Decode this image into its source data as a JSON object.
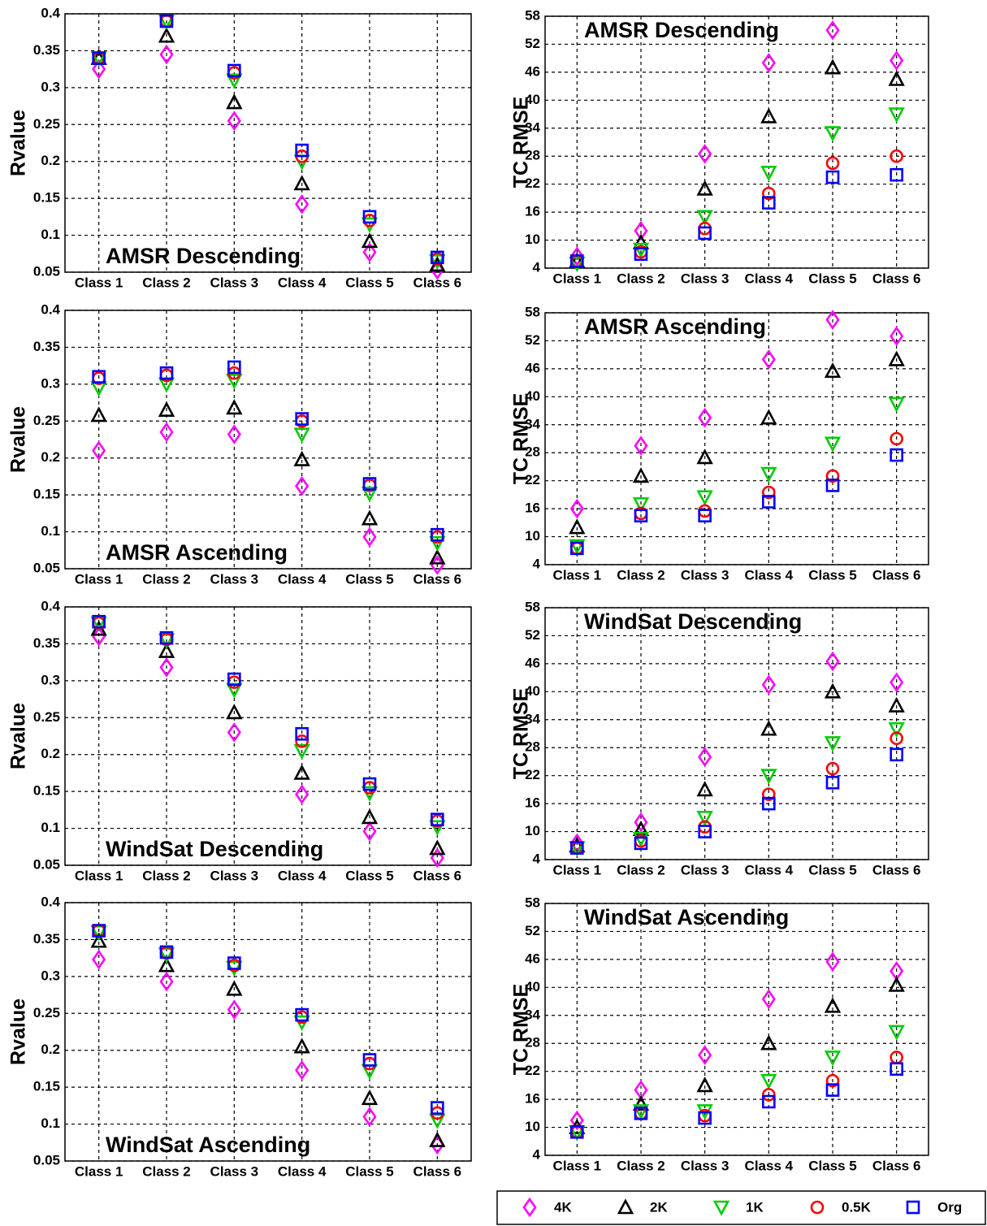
{
  "chart_data": [
    {
      "type": "scatter",
      "title": "AMSR Descending",
      "ylabel": "Rvalue",
      "grid": true,
      "categories": [
        "Class 1",
        "Class 2",
        "Class 3",
        "Class 4",
        "Class 5",
        "Class 6"
      ],
      "ylim": [
        0.05,
        0.4
      ],
      "yticks": [
        0.05,
        0.1,
        0.15,
        0.2,
        0.25,
        0.3,
        0.35,
        0.4
      ],
      "series": [
        {
          "name": "4K",
          "color": "#ff00ff",
          "marker": "diamond",
          "values": [
            0.325,
            0.345,
            0.255,
            0.142,
            0.077,
            0.053
          ]
        },
        {
          "name": "2K",
          "color": "#000000",
          "marker": "triangle-up",
          "values": [
            0.34,
            0.37,
            0.28,
            0.17,
            0.092,
            0.06
          ]
        },
        {
          "name": "1K",
          "color": "#00cc00",
          "marker": "triangle-down",
          "values": [
            0.34,
            0.39,
            0.31,
            0.2,
            0.115,
            0.065
          ]
        },
        {
          "name": "0.5K",
          "color": "#ff0000",
          "marker": "circle",
          "values": [
            0.34,
            0.39,
            0.32,
            0.207,
            0.12,
            0.068
          ]
        },
        {
          "name": "Org",
          "color": "#0000ff",
          "marker": "square",
          "values": [
            0.34,
            0.39,
            0.323,
            0.215,
            0.125,
            0.07
          ]
        }
      ]
    },
    {
      "type": "scatter",
      "title": "AMSR Descending",
      "ylabel": "TC RMSE",
      "grid": true,
      "categories": [
        "Class 1",
        "Class 2",
        "Class 3",
        "Class 4",
        "Class 5",
        "Class 6"
      ],
      "ylim": [
        4,
        58
      ],
      "yticks": [
        4,
        10,
        16,
        22,
        28,
        34,
        40,
        46,
        52,
        58
      ],
      "series": [
        {
          "name": "4K",
          "color": "#ff00ff",
          "marker": "diamond",
          "values": [
            6.5,
            12,
            28.5,
            48,
            55,
            48.5
          ]
        },
        {
          "name": "2K",
          "color": "#000000",
          "marker": "triangle-up",
          "values": [
            5.5,
            9.5,
            21,
            36.5,
            47,
            44.5
          ]
        },
        {
          "name": "1K",
          "color": "#00cc00",
          "marker": "triangle-down",
          "values": [
            5,
            8,
            15,
            24.5,
            33,
            37
          ]
        },
        {
          "name": "0.5K",
          "color": "#ff0000",
          "marker": "circle",
          "values": [
            5.5,
            7.5,
            12.5,
            20,
            26.5,
            28
          ]
        },
        {
          "name": "Org",
          "color": "#0000ff",
          "marker": "square",
          "values": [
            5.5,
            7,
            11.5,
            18,
            23.5,
            24
          ]
        }
      ]
    },
    {
      "type": "scatter",
      "title": "AMSR Ascending",
      "ylabel": "Rvalue",
      "grid": true,
      "categories": [
        "Class 1",
        "Class 2",
        "Class 3",
        "Class 4",
        "Class 5",
        "Class 6"
      ],
      "ylim": [
        0.05,
        0.4
      ],
      "yticks": [
        0.05,
        0.1,
        0.15,
        0.2,
        0.25,
        0.3,
        0.35,
        0.4
      ],
      "series": [
        {
          "name": "4K",
          "color": "#ff00ff",
          "marker": "diamond",
          "values": [
            0.21,
            0.235,
            0.232,
            0.162,
            0.093,
            0.055
          ]
        },
        {
          "name": "2K",
          "color": "#000000",
          "marker": "triangle-up",
          "values": [
            0.258,
            0.265,
            0.268,
            0.198,
            0.118,
            0.065
          ]
        },
        {
          "name": "1K",
          "color": "#00cc00",
          "marker": "triangle-down",
          "values": [
            0.295,
            0.3,
            0.305,
            0.232,
            0.152,
            0.085
          ]
        },
        {
          "name": "0.5K",
          "color": "#ff0000",
          "marker": "circle",
          "values": [
            0.308,
            0.312,
            0.315,
            0.25,
            0.163,
            0.093
          ]
        },
        {
          "name": "Org",
          "color": "#0000ff",
          "marker": "square",
          "values": [
            0.31,
            0.315,
            0.323,
            0.253,
            0.165,
            0.096
          ]
        }
      ]
    },
    {
      "type": "scatter",
      "title": "AMSR Ascending",
      "ylabel": "TC RMSE",
      "grid": true,
      "categories": [
        "Class 1",
        "Class 2",
        "Class 3",
        "Class 4",
        "Class 5",
        "Class 6"
      ],
      "ylim": [
        4,
        58
      ],
      "yticks": [
        4,
        10,
        16,
        22,
        28,
        34,
        40,
        46,
        52,
        58
      ],
      "series": [
        {
          "name": "4K",
          "color": "#ff00ff",
          "marker": "diamond",
          "values": [
            16,
            29.5,
            35.5,
            48,
            56.5,
            53
          ]
        },
        {
          "name": "2K",
          "color": "#000000",
          "marker": "triangle-up",
          "values": [
            12,
            23,
            27,
            35.5,
            45.5,
            48
          ]
        },
        {
          "name": "1K",
          "color": "#00cc00",
          "marker": "triangle-down",
          "values": [
            8,
            17,
            18.5,
            23.5,
            30,
            38.5
          ]
        },
        {
          "name": "0.5K",
          "color": "#ff0000",
          "marker": "circle",
          "values": [
            7.5,
            15,
            15.5,
            19.5,
            23,
            31
          ]
        },
        {
          "name": "Org",
          "color": "#0000ff",
          "marker": "square",
          "values": [
            7.5,
            14.5,
            14.5,
            17.5,
            21,
            27.5
          ]
        }
      ]
    },
    {
      "type": "scatter",
      "title": "WindSat Descending",
      "ylabel": "Rvalue",
      "grid": true,
      "categories": [
        "Class 1",
        "Class 2",
        "Class 3",
        "Class 4",
        "Class 5",
        "Class 6"
      ],
      "ylim": [
        0.05,
        0.4
      ],
      "yticks": [
        0.05,
        0.1,
        0.15,
        0.2,
        0.25,
        0.3,
        0.35,
        0.4
      ],
      "series": [
        {
          "name": "4K",
          "color": "#ff00ff",
          "marker": "diamond",
          "values": [
            0.36,
            0.318,
            0.23,
            0.146,
            0.096,
            0.06
          ]
        },
        {
          "name": "2K",
          "color": "#000000",
          "marker": "triangle-up",
          "values": [
            0.37,
            0.34,
            0.257,
            0.175,
            0.115,
            0.073
          ]
        },
        {
          "name": "1K",
          "color": "#00cc00",
          "marker": "triangle-down",
          "values": [
            0.378,
            0.355,
            0.288,
            0.205,
            0.148,
            0.102
          ]
        },
        {
          "name": "0.5K",
          "color": "#ff0000",
          "marker": "circle",
          "values": [
            0.378,
            0.356,
            0.298,
            0.218,
            0.155,
            0.11
          ]
        },
        {
          "name": "Org",
          "color": "#0000ff",
          "marker": "square",
          "values": [
            0.38,
            0.358,
            0.302,
            0.228,
            0.16,
            0.112
          ]
        }
      ]
    },
    {
      "type": "scatter",
      "title": "WindSat Descending",
      "ylabel": "TC RMSE",
      "grid": true,
      "categories": [
        "Class 1",
        "Class 2",
        "Class 3",
        "Class 4",
        "Class 5",
        "Class 6"
      ],
      "ylim": [
        4,
        58
      ],
      "yticks": [
        4,
        10,
        16,
        22,
        28,
        34,
        40,
        46,
        52,
        58
      ],
      "series": [
        {
          "name": "4K",
          "color": "#ff00ff",
          "marker": "diamond",
          "values": [
            7.5,
            12,
            26,
            41.5,
            46.5,
            42
          ]
        },
        {
          "name": "2K",
          "color": "#000000",
          "marker": "triangle-up",
          "values": [
            7,
            10.5,
            19,
            32,
            40,
            37
          ]
        },
        {
          "name": "1K",
          "color": "#00cc00",
          "marker": "triangle-down",
          "values": [
            6.5,
            8.5,
            13,
            22,
            29,
            32
          ]
        },
        {
          "name": "0.5K",
          "color": "#ff0000",
          "marker": "circle",
          "values": [
            6.5,
            8,
            11,
            18,
            23.5,
            30
          ]
        },
        {
          "name": "Org",
          "color": "#0000ff",
          "marker": "square",
          "values": [
            6.5,
            7.5,
            10,
            16,
            20.5,
            26.5
          ]
        }
      ]
    },
    {
      "type": "scatter",
      "title": "WindSat Ascending",
      "ylabel": "Rvalue",
      "grid": true,
      "categories": [
        "Class 1",
        "Class 2",
        "Class 3",
        "Class 4",
        "Class 5",
        "Class 6"
      ],
      "ylim": [
        0.05,
        0.4
      ],
      "yticks": [
        0.05,
        0.1,
        0.15,
        0.2,
        0.25,
        0.3,
        0.35,
        0.4
      ],
      "series": [
        {
          "name": "4K",
          "color": "#ff00ff",
          "marker": "diamond",
          "values": [
            0.323,
            0.293,
            0.255,
            0.173,
            0.11,
            0.072
          ]
        },
        {
          "name": "2K",
          "color": "#000000",
          "marker": "triangle-up",
          "values": [
            0.348,
            0.315,
            0.283,
            0.205,
            0.135,
            0.078
          ]
        },
        {
          "name": "1K",
          "color": "#00cc00",
          "marker": "triangle-down",
          "values": [
            0.36,
            0.33,
            0.312,
            0.238,
            0.172,
            0.105
          ]
        },
        {
          "name": "0.5K",
          "color": "#ff0000",
          "marker": "circle",
          "values": [
            0.362,
            0.332,
            0.315,
            0.245,
            0.182,
            0.115
          ]
        },
        {
          "name": "Org",
          "color": "#0000ff",
          "marker": "square",
          "values": [
            0.362,
            0.333,
            0.318,
            0.248,
            0.187,
            0.122
          ]
        }
      ]
    },
    {
      "type": "scatter",
      "title": "WindSat Ascending",
      "ylabel": "TC RMSE",
      "grid": true,
      "categories": [
        "Class 1",
        "Class 2",
        "Class 3",
        "Class 4",
        "Class 5",
        "Class 6"
      ],
      "ylim": [
        4,
        58
      ],
      "yticks": [
        4,
        10,
        16,
        22,
        28,
        34,
        40,
        46,
        52,
        58
      ],
      "series": [
        {
          "name": "4K",
          "color": "#ff00ff",
          "marker": "diamond",
          "values": [
            11.5,
            18,
            25.5,
            37.5,
            45.5,
            43.5
          ]
        },
        {
          "name": "2K",
          "color": "#000000",
          "marker": "triangle-up",
          "values": [
            10,
            15,
            19,
            28,
            36,
            40.5
          ]
        },
        {
          "name": "1K",
          "color": "#00cc00",
          "marker": "triangle-down",
          "values": [
            9,
            13.5,
            13.5,
            20,
            25,
            30.5
          ]
        },
        {
          "name": "0.5K",
          "color": "#ff0000",
          "marker": "circle",
          "values": [
            9,
            13,
            12.5,
            17,
            20,
            25
          ]
        },
        {
          "name": "Org",
          "color": "#0000ff",
          "marker": "square",
          "values": [
            9,
            13,
            12,
            15.5,
            18,
            22.5
          ]
        }
      ]
    }
  ]
}
